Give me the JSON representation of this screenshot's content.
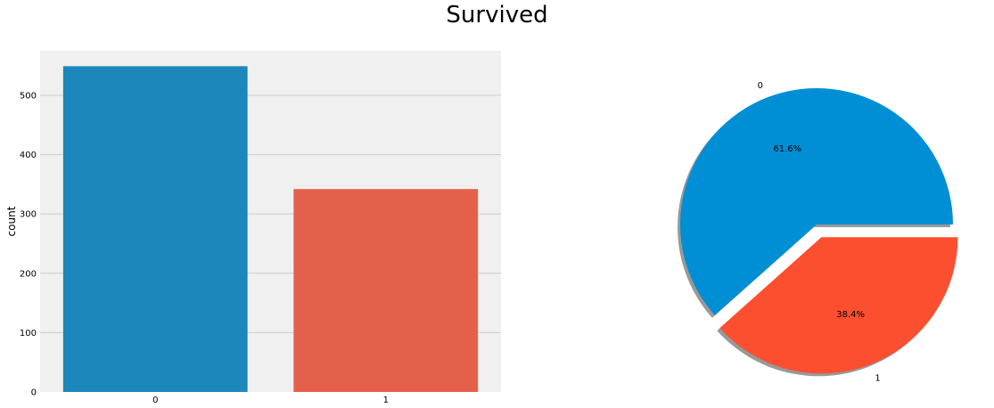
{
  "figure": {
    "suptitle": "Survived"
  },
  "chart_data": [
    {
      "type": "bar",
      "title": "",
      "xlabel": "",
      "ylabel": "count",
      "categories": [
        "0",
        "1"
      ],
      "values": [
        549,
        342
      ],
      "ylim": [
        0,
        575
      ],
      "yticks": [
        0,
        100,
        200,
        300,
        400,
        500
      ],
      "grid": true,
      "colors": [
        "#1c87ba",
        "#e5604a"
      ],
      "background": "#f0f0f0",
      "gridColor": "#cbcbcb"
    },
    {
      "type": "pie",
      "title": "",
      "labels": [
        "0",
        "1"
      ],
      "values": [
        61.6,
        38.4
      ],
      "autopct": [
        "61.6%",
        "38.4%"
      ],
      "explode": [
        0,
        0.1
      ],
      "shadow": true,
      "colors": [
        "#008fd5",
        "#fc4f30"
      ]
    }
  ]
}
